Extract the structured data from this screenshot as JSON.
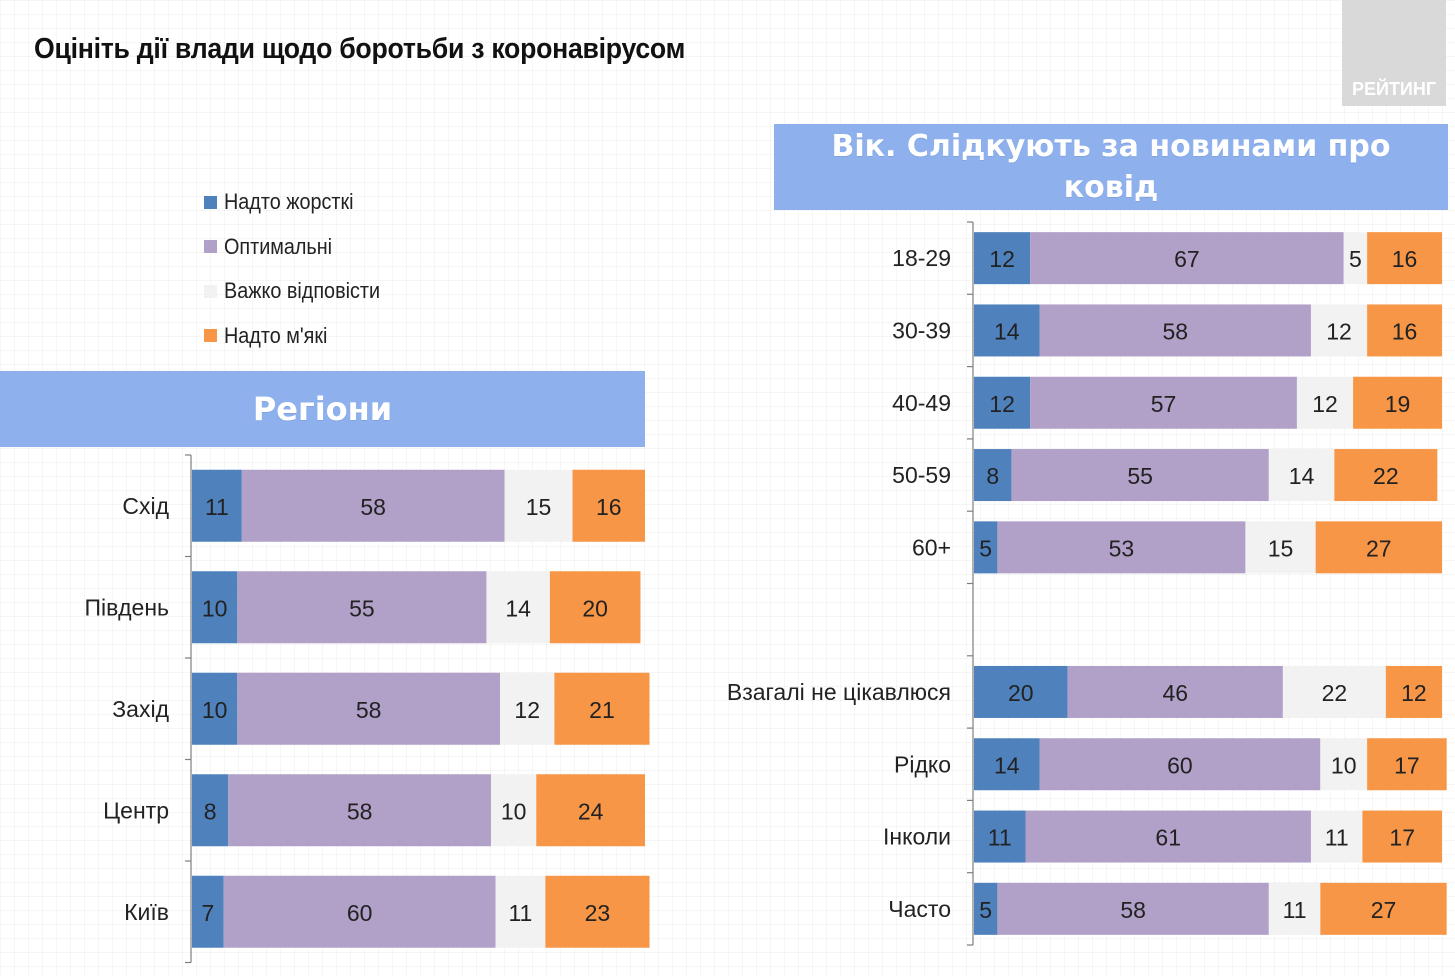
{
  "title": "Оцініть дії влади щодо боротьби з коронавірусом",
  "logo_text": "РЕЙТИНГ",
  "legend": [
    {
      "label": "Надто жорсткі",
      "color": "#4f81bd"
    },
    {
      "label": "Оптимальні",
      "color": "#b1a0c7"
    },
    {
      "label": "Важко відповісти",
      "color": "#f2f2f2"
    },
    {
      "label": "Надто м'які",
      "color": "#f79646"
    }
  ],
  "colors": [
    "#4f81bd",
    "#b1a0c7",
    "#f2f2f2",
    "#f79646"
  ],
  "chart_data": [
    {
      "type": "bar",
      "orientation": "horizontal",
      "stacked": true,
      "title": "Регіони",
      "categories": [
        "Схід",
        "Південь",
        "Захід",
        "Центр",
        "Київ"
      ],
      "series": [
        {
          "name": "Надто жорсткі",
          "values": [
            11,
            10,
            10,
            8,
            7
          ]
        },
        {
          "name": "Оптимальні",
          "values": [
            58,
            55,
            58,
            58,
            60
          ]
        },
        {
          "name": "Важко відповісти",
          "values": [
            15,
            14,
            12,
            10,
            11
          ]
        },
        {
          "name": "Надто м'які",
          "values": [
            16,
            20,
            21,
            24,
            23
          ]
        }
      ],
      "xlim": [
        0,
        100
      ]
    },
    {
      "type": "bar",
      "orientation": "horizontal",
      "stacked": true,
      "title": "Вік. Слідкують за новинами про ковід",
      "categories": [
        "18-29",
        "30-39",
        "40-49",
        "50-59",
        "60+",
        "",
        "Взагалі не цікавлюся",
        "Рідко",
        "Інколи",
        "Часто"
      ],
      "series": [
        {
          "name": "Надто жорсткі",
          "values": [
            12,
            14,
            12,
            8,
            5,
            null,
            20,
            14,
            11,
            5
          ]
        },
        {
          "name": "Оптимальні",
          "values": [
            67,
            58,
            57,
            55,
            53,
            null,
            46,
            60,
            61,
            58
          ]
        },
        {
          "name": "Важко відповісти",
          "values": [
            5,
            12,
            12,
            14,
            15,
            null,
            22,
            10,
            11,
            11
          ]
        },
        {
          "name": "Надто м'які",
          "values": [
            16,
            16,
            19,
            22,
            27,
            null,
            12,
            17,
            17,
            27
          ]
        }
      ],
      "xlim": [
        0,
        100
      ]
    }
  ]
}
